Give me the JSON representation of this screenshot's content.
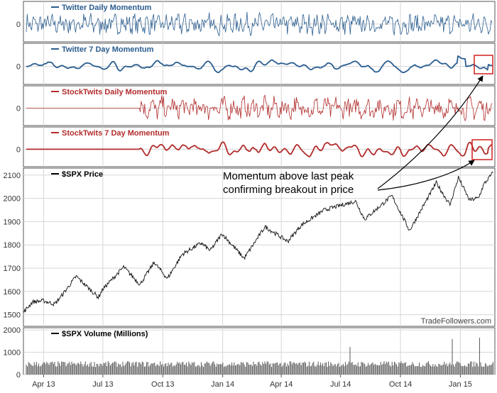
{
  "figure": {
    "watermark": "TradeFollowers.com",
    "annotation": {
      "line1": "Momentum above last peak",
      "line2": "confirming breakout in price"
    }
  },
  "colors": {
    "twitter": "#2a5d8f",
    "stocktwits": "#b22b2b",
    "price": "#111111",
    "grid": "#d6d6d6",
    "highlight_box": "#d21f1f"
  },
  "chart_data": [
    {
      "type": "line",
      "title": "Twitter Daily Momentum",
      "series": [
        {
          "name": "Twitter Daily Momentum",
          "pattern": "noisy oscillation around 0"
        }
      ],
      "y_ticks": [
        0
      ],
      "ylim": [
        -1,
        1
      ],
      "grid": true
    },
    {
      "type": "line",
      "title": "Twitter 7 Day Momentum",
      "series": [
        {
          "name": "Twitter 7 Day Momentum",
          "pattern": "smoothed oscillation around 0, recent rise above prior peak"
        }
      ],
      "y_ticks": [
        0
      ],
      "ylim": [
        -1,
        1
      ],
      "grid": true
    },
    {
      "type": "line",
      "title": "StockTwits Daily Momentum",
      "series": [
        {
          "name": "StockTwits Daily Momentum",
          "pattern": "flat 0 until ~Jul 13, then noisy oscillation"
        }
      ],
      "y_ticks": [
        0
      ],
      "ylim": [
        -1,
        1
      ],
      "grid": true
    },
    {
      "type": "line",
      "title": "StockTwits 7 Day Momentum",
      "series": [
        {
          "name": "StockTwits 7 Day Momentum",
          "pattern": "flat 0 until ~Jul 13, then smoothed oscillation"
        }
      ],
      "y_ticks": [
        0
      ],
      "ylim": [
        -1,
        1
      ],
      "grid": true
    },
    {
      "type": "line",
      "title": "$SPX Price",
      "series": [
        {
          "name": "$SPX Price",
          "points": [
            [
              "2013-03-01",
              1510
            ],
            [
              "2013-03-15",
              1555
            ],
            [
              "2013-04-01",
              1560
            ],
            [
              "2013-04-18",
              1545
            ],
            [
              "2013-05-01",
              1590
            ],
            [
              "2013-05-21",
              1665
            ],
            [
              "2013-06-24",
              1575
            ],
            [
              "2013-07-01",
              1610
            ],
            [
              "2013-08-02",
              1705
            ],
            [
              "2013-08-27",
              1630
            ],
            [
              "2013-09-18",
              1725
            ],
            [
              "2013-10-08",
              1655
            ],
            [
              "2013-10-31",
              1760
            ],
            [
              "2013-11-29",
              1808
            ],
            [
              "2013-12-13",
              1775
            ],
            [
              "2013-12-31",
              1848
            ],
            [
              "2014-02-03",
              1742
            ],
            [
              "2014-03-07",
              1878
            ],
            [
              "2014-04-11",
              1815
            ],
            [
              "2014-05-01",
              1883
            ],
            [
              "2014-06-06",
              1950
            ],
            [
              "2014-07-24",
              1988
            ],
            [
              "2014-08-07",
              1910
            ],
            [
              "2014-09-18",
              2011
            ],
            [
              "2014-10-15",
              1862
            ],
            [
              "2014-11-25",
              2067
            ],
            [
              "2014-12-16",
              1972
            ],
            [
              "2014-12-29",
              2090
            ],
            [
              "2015-01-15",
              1992
            ],
            [
              "2015-01-29",
              2002
            ],
            [
              "2015-02-06",
              2060
            ],
            [
              "2015-02-20",
              2110
            ]
          ]
        }
      ],
      "y_ticks": [
        1500,
        1600,
        1700,
        1800,
        1900,
        2000,
        2100
      ],
      "ylim": [
        1450,
        2130
      ],
      "grid": true
    },
    {
      "type": "bar",
      "title": "$SPX Volume (Millions)",
      "series": [
        {
          "name": "$SPX Volume (Millions)",
          "typical_value": 470,
          "spikes": [
            [
              "2014-07-15",
              1230
            ],
            [
              "2014-12-19",
              1600
            ],
            [
              "2015-01-30",
              1650
            ]
          ]
        }
      ],
      "y_ticks": [
        0,
        1000,
        2000
      ],
      "ylim": [
        0,
        2100
      ],
      "grid": true
    }
  ],
  "x_axis": {
    "start": "2013-03-01",
    "end": "2015-02-23",
    "ticks": [
      {
        "label": "Apr 13",
        "date": "2013-04-01"
      },
      {
        "label": "Jul 13",
        "date": "2013-07-01"
      },
      {
        "label": "Oct 13",
        "date": "2013-10-01"
      },
      {
        "label": "Jan 14",
        "date": "2014-01-01"
      },
      {
        "label": "Apr 14",
        "date": "2014-04-01"
      },
      {
        "label": "Jul 14",
        "date": "2014-07-01"
      },
      {
        "label": "Oct 14",
        "date": "2014-10-01"
      },
      {
        "label": "Jan 15",
        "date": "2015-01-01"
      }
    ]
  }
}
